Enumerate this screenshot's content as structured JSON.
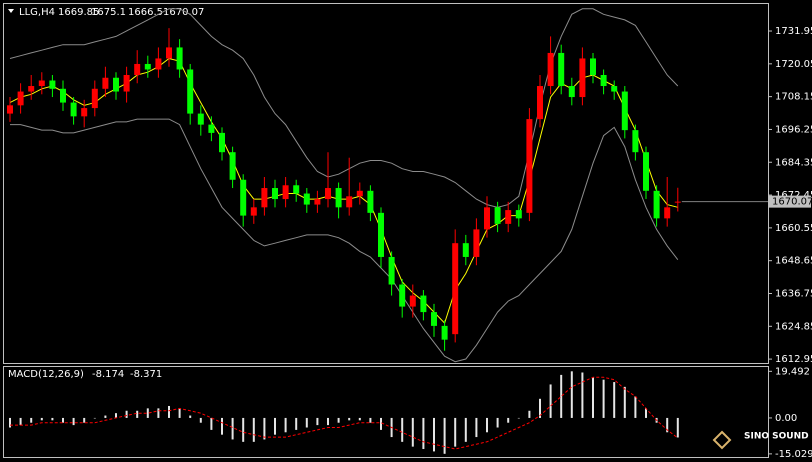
{
  "chart_data": [
    {
      "type": "candlestick",
      "title": "LLG,H4",
      "up_color": "#ff0000",
      "down_color": "#00ff00",
      "open": [
        1702,
        1705,
        1710,
        1712,
        1714,
        1711,
        1706,
        1701,
        1704,
        1711,
        1715,
        1710,
        1716,
        1720,
        1718,
        1722,
        1726,
        1718,
        1702,
        1698,
        1695,
        1688,
        1678,
        1665,
        1668,
        1675,
        1671,
        1676,
        1673,
        1669,
        1671,
        1675,
        1668,
        1672,
        1674,
        1666,
        1650,
        1640,
        1632,
        1636,
        1630,
        1625,
        1622,
        1655,
        1650,
        1660,
        1668,
        1662,
        1667,
        1666,
        1700,
        1712,
        1724,
        1712,
        1708,
        1722,
        1716,
        1712,
        1710,
        1696,
        1688,
        1674,
        1664,
        1669.85
      ],
      "high": [
        1708,
        1713,
        1716,
        1717,
        1716,
        1714,
        1708,
        1707,
        1714,
        1719,
        1717,
        1719,
        1725,
        1723,
        1726,
        1733,
        1729,
        1720,
        1705,
        1701,
        1697,
        1690,
        1680,
        1671,
        1679,
        1678,
        1679,
        1678,
        1675,
        1674,
        1688,
        1677,
        1686,
        1677,
        1676,
        1668,
        1652,
        1642,
        1640,
        1638,
        1633,
        1627,
        1660,
        1658,
        1664,
        1672,
        1670,
        1670,
        1669,
        1704,
        1716,
        1730,
        1727,
        1715,
        1726,
        1724,
        1718,
        1714,
        1712,
        1698,
        1690,
        1676,
        1679,
        1675.1
      ],
      "low": [
        1699,
        1702,
        1707,
        1709,
        1708,
        1703,
        1698,
        1697,
        1701,
        1708,
        1707,
        1706,
        1713,
        1715,
        1715,
        1719,
        1715,
        1698,
        1694,
        1692,
        1685,
        1675,
        1661,
        1662,
        1665,
        1668,
        1668,
        1670,
        1666,
        1666,
        1668,
        1664,
        1665,
        1669,
        1663,
        1646,
        1636,
        1628,
        1628,
        1627,
        1621,
        1616,
        1619,
        1647,
        1647,
        1657,
        1659,
        1659,
        1661,
        1663,
        1697,
        1709,
        1709,
        1705,
        1705,
        1713,
        1709,
        1707,
        1693,
        1685,
        1671,
        1661,
        1661,
        1666.5
      ],
      "close": [
        1705,
        1710,
        1712,
        1714,
        1711,
        1706,
        1701,
        1704,
        1711,
        1715,
        1710,
        1716,
        1720,
        1718,
        1722,
        1726,
        1718,
        1702,
        1698,
        1695,
        1688,
        1678,
        1665,
        1668,
        1675,
        1671,
        1676,
        1673,
        1669,
        1671,
        1675,
        1668,
        1672,
        1674,
        1666,
        1650,
        1640,
        1632,
        1636,
        1630,
        1625,
        1620,
        1655,
        1650,
        1660,
        1668,
        1662,
        1667,
        1664,
        1700,
        1712,
        1724,
        1712,
        1708,
        1722,
        1716,
        1712,
        1710,
        1696,
        1688,
        1674,
        1664,
        1668,
        1670.07
      ],
      "series": [
        {
          "color": "#8c8c8c",
          "values": [
            1722,
            1723,
            1724,
            1725,
            1726,
            1727,
            1727,
            1727,
            1728,
            1729,
            1730,
            1732,
            1734,
            1736,
            1738,
            1740,
            1740,
            1738,
            1734,
            1730,
            1727,
            1725,
            1722,
            1716,
            1708,
            1702,
            1698,
            1692,
            1686,
            1681,
            1679,
            1680,
            1682,
            1684,
            1685,
            1685,
            1684,
            1682,
            1681,
            1681,
            1680,
            1679,
            1677,
            1674,
            1671,
            1669,
            1668,
            1669,
            1672,
            1688,
            1705,
            1720,
            1730,
            1738,
            1740,
            1740,
            1738,
            1737,
            1736,
            1734,
            1728,
            1722,
            1716,
            1712
          ]
        },
        {
          "color": "#8c8c8c",
          "values": [
            1698,
            1698,
            1697,
            1696,
            1696,
            1695,
            1695,
            1696,
            1697,
            1698,
            1699,
            1699,
            1700,
            1700,
            1700,
            1700,
            1698,
            1690,
            1682,
            1675,
            1668,
            1664,
            1660,
            1656,
            1654,
            1655,
            1656,
            1657,
            1658,
            1658,
            1658,
            1657,
            1655,
            1652,
            1650,
            1646,
            1642,
            1636,
            1630,
            1624,
            1619,
            1614,
            1612,
            1613,
            1618,
            1624,
            1630,
            1634,
            1636,
            1640,
            1644,
            1648,
            1652,
            1660,
            1672,
            1684,
            1694,
            1697,
            1690,
            1678,
            1668,
            1660,
            1654,
            1649
          ]
        },
        {
          "color": "#ffff00",
          "values": [
            1706,
            1708,
            1709,
            1711,
            1712,
            1710,
            1707,
            1705,
            1706,
            1709,
            1711,
            1713,
            1716,
            1717,
            1719,
            1722,
            1721,
            1713,
            1706,
            1699,
            1693,
            1685,
            1676,
            1671,
            1671,
            1672,
            1673,
            1673,
            1671,
            1671,
            1672,
            1671,
            1671,
            1672,
            1669,
            1660,
            1650,
            1641,
            1637,
            1634,
            1630,
            1626,
            1638,
            1644,
            1652,
            1660,
            1662,
            1665,
            1665,
            1678,
            1693,
            1708,
            1713,
            1711,
            1715,
            1716,
            1714,
            1712,
            1704,
            1696,
            1685,
            1674,
            1669,
            1668
          ]
        }
      ],
      "ylim": [
        1611.9,
        1740.3
      ],
      "yticks": [
        1731.95,
        1720.05,
        1708.15,
        1696.25,
        1684.35,
        1672.45,
        1660.55,
        1648.65,
        1636.75,
        1624.85,
        1612.95
      ]
    },
    {
      "type": "macd",
      "title": "MACD(12,26,9)",
      "series": [
        {
          "color": "#e6e6e6",
          "values": [
            -4,
            -3,
            -2,
            -1,
            -1,
            -2,
            -3,
            -2,
            0,
            1,
            2,
            3,
            3,
            4,
            4,
            5,
            4,
            1,
            -2,
            -5,
            -7,
            -9,
            -10,
            -10,
            -9,
            -7,
            -6,
            -5,
            -4,
            -3,
            -3,
            -2,
            -1,
            -1,
            -2,
            -5,
            -8,
            -10,
            -12,
            -13,
            -14,
            -15,
            -12,
            -10,
            -8,
            -6,
            -4,
            -2,
            0,
            3,
            8,
            14,
            18,
            19.492,
            19,
            17,
            16,
            15,
            13,
            9,
            4,
            -2,
            -6,
            -8.174
          ]
        },
        {
          "color": "#ff0000",
          "values": [
            -3,
            -3,
            -3,
            -2,
            -2,
            -2,
            -2,
            -2,
            -2,
            -1,
            0,
            1,
            2,
            2,
            3,
            3,
            4,
            3,
            2,
            0,
            -2,
            -4,
            -6,
            -7,
            -8,
            -8,
            -8,
            -7,
            -6,
            -5,
            -4,
            -4,
            -3,
            -2,
            -2,
            -2,
            -4,
            -6,
            -8,
            -10,
            -11,
            -12,
            -13,
            -12,
            -11,
            -10,
            -8,
            -6,
            -4,
            -2,
            1,
            5,
            9,
            13,
            15,
            17,
            17,
            16,
            12,
            9,
            4,
            -1,
            -5,
            -8.371
          ]
        }
      ],
      "ylim": [
        -15.5,
        21.3
      ],
      "yticks": [
        19.492,
        {
          "value": 0,
          "label": "0.00"
        },
        -15.029
      ]
    }
  ],
  "logo": "SINO SOUND"
}
